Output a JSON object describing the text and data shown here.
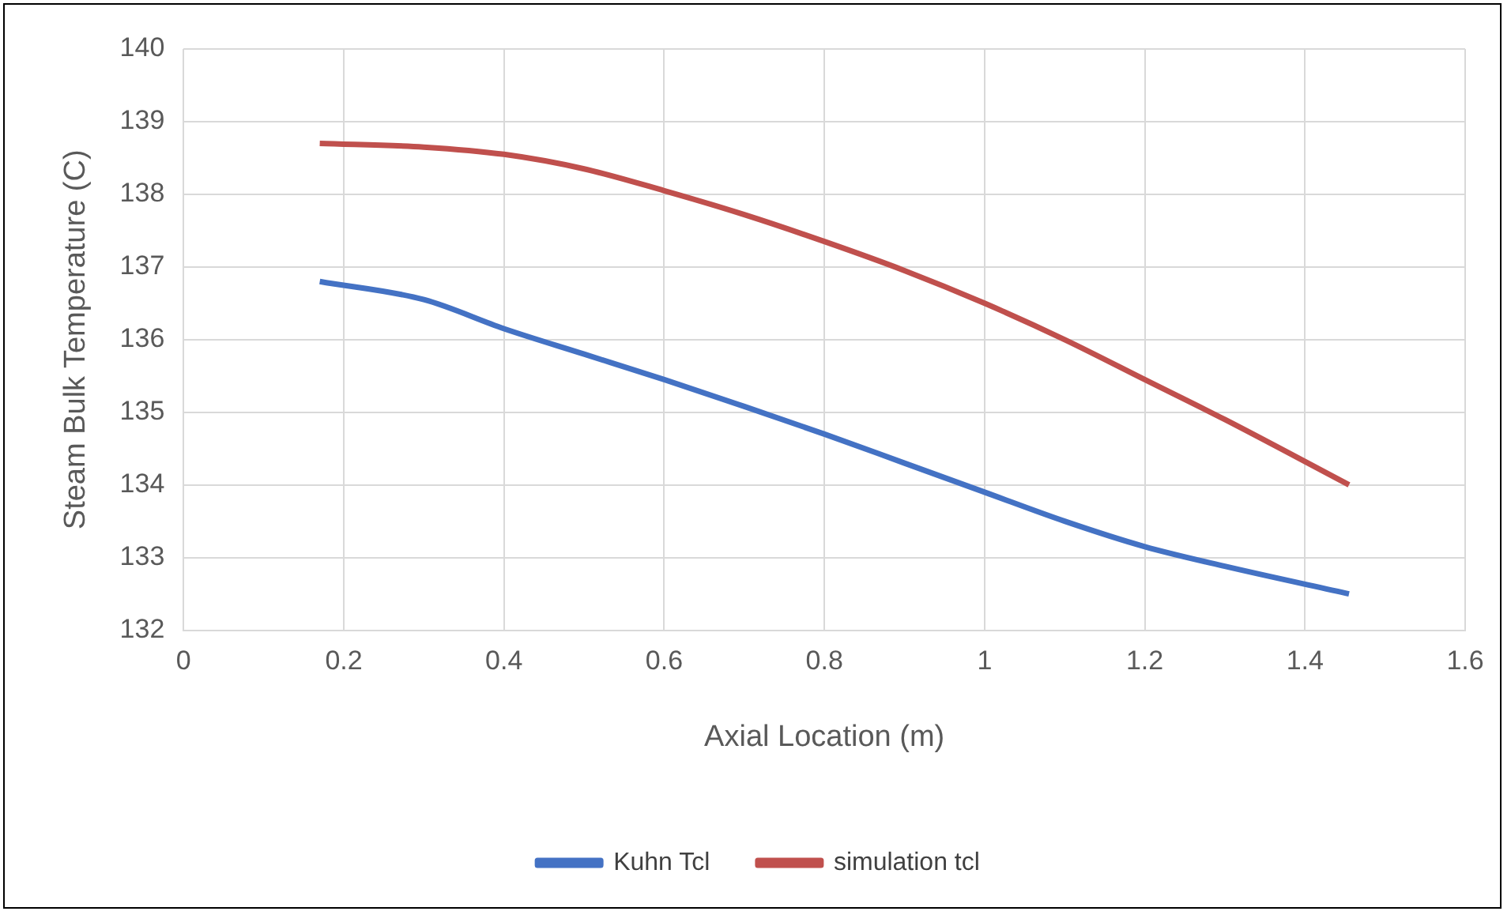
{
  "chart_data": {
    "type": "line",
    "xlabel": "Axial Location (m)",
    "ylabel": "Steam Bulk Temperature (C)",
    "x": [
      0.17,
      0.3,
      0.4,
      0.5,
      0.6,
      0.7,
      0.8,
      0.9,
      1.0,
      1.1,
      1.2,
      1.3,
      1.455
    ],
    "series": [
      {
        "name": "Kuhn Tcl",
        "color": "#4472c4",
        "values": [
          136.8,
          136.55,
          136.15,
          135.8,
          135.45,
          135.08,
          134.7,
          134.3,
          133.9,
          133.5,
          133.15,
          132.88,
          132.5
        ]
      },
      {
        "name": "simulation tcl",
        "color": "#c0504d",
        "values": [
          138.7,
          138.65,
          138.55,
          138.35,
          138.05,
          137.72,
          137.35,
          136.95,
          136.5,
          136.0,
          135.45,
          134.9,
          134.0
        ]
      }
    ],
    "xlim": [
      0,
      1.6
    ],
    "xticks": [
      0,
      0.2,
      0.4,
      0.6,
      0.8,
      1,
      1.2,
      1.4,
      1.6
    ],
    "ylim": [
      132,
      140
    ],
    "yticks": [
      132,
      133,
      134,
      135,
      136,
      137,
      138,
      139,
      140
    ],
    "grid": true,
    "legend": "bottom",
    "marker": "none",
    "line_style": "solid"
  }
}
